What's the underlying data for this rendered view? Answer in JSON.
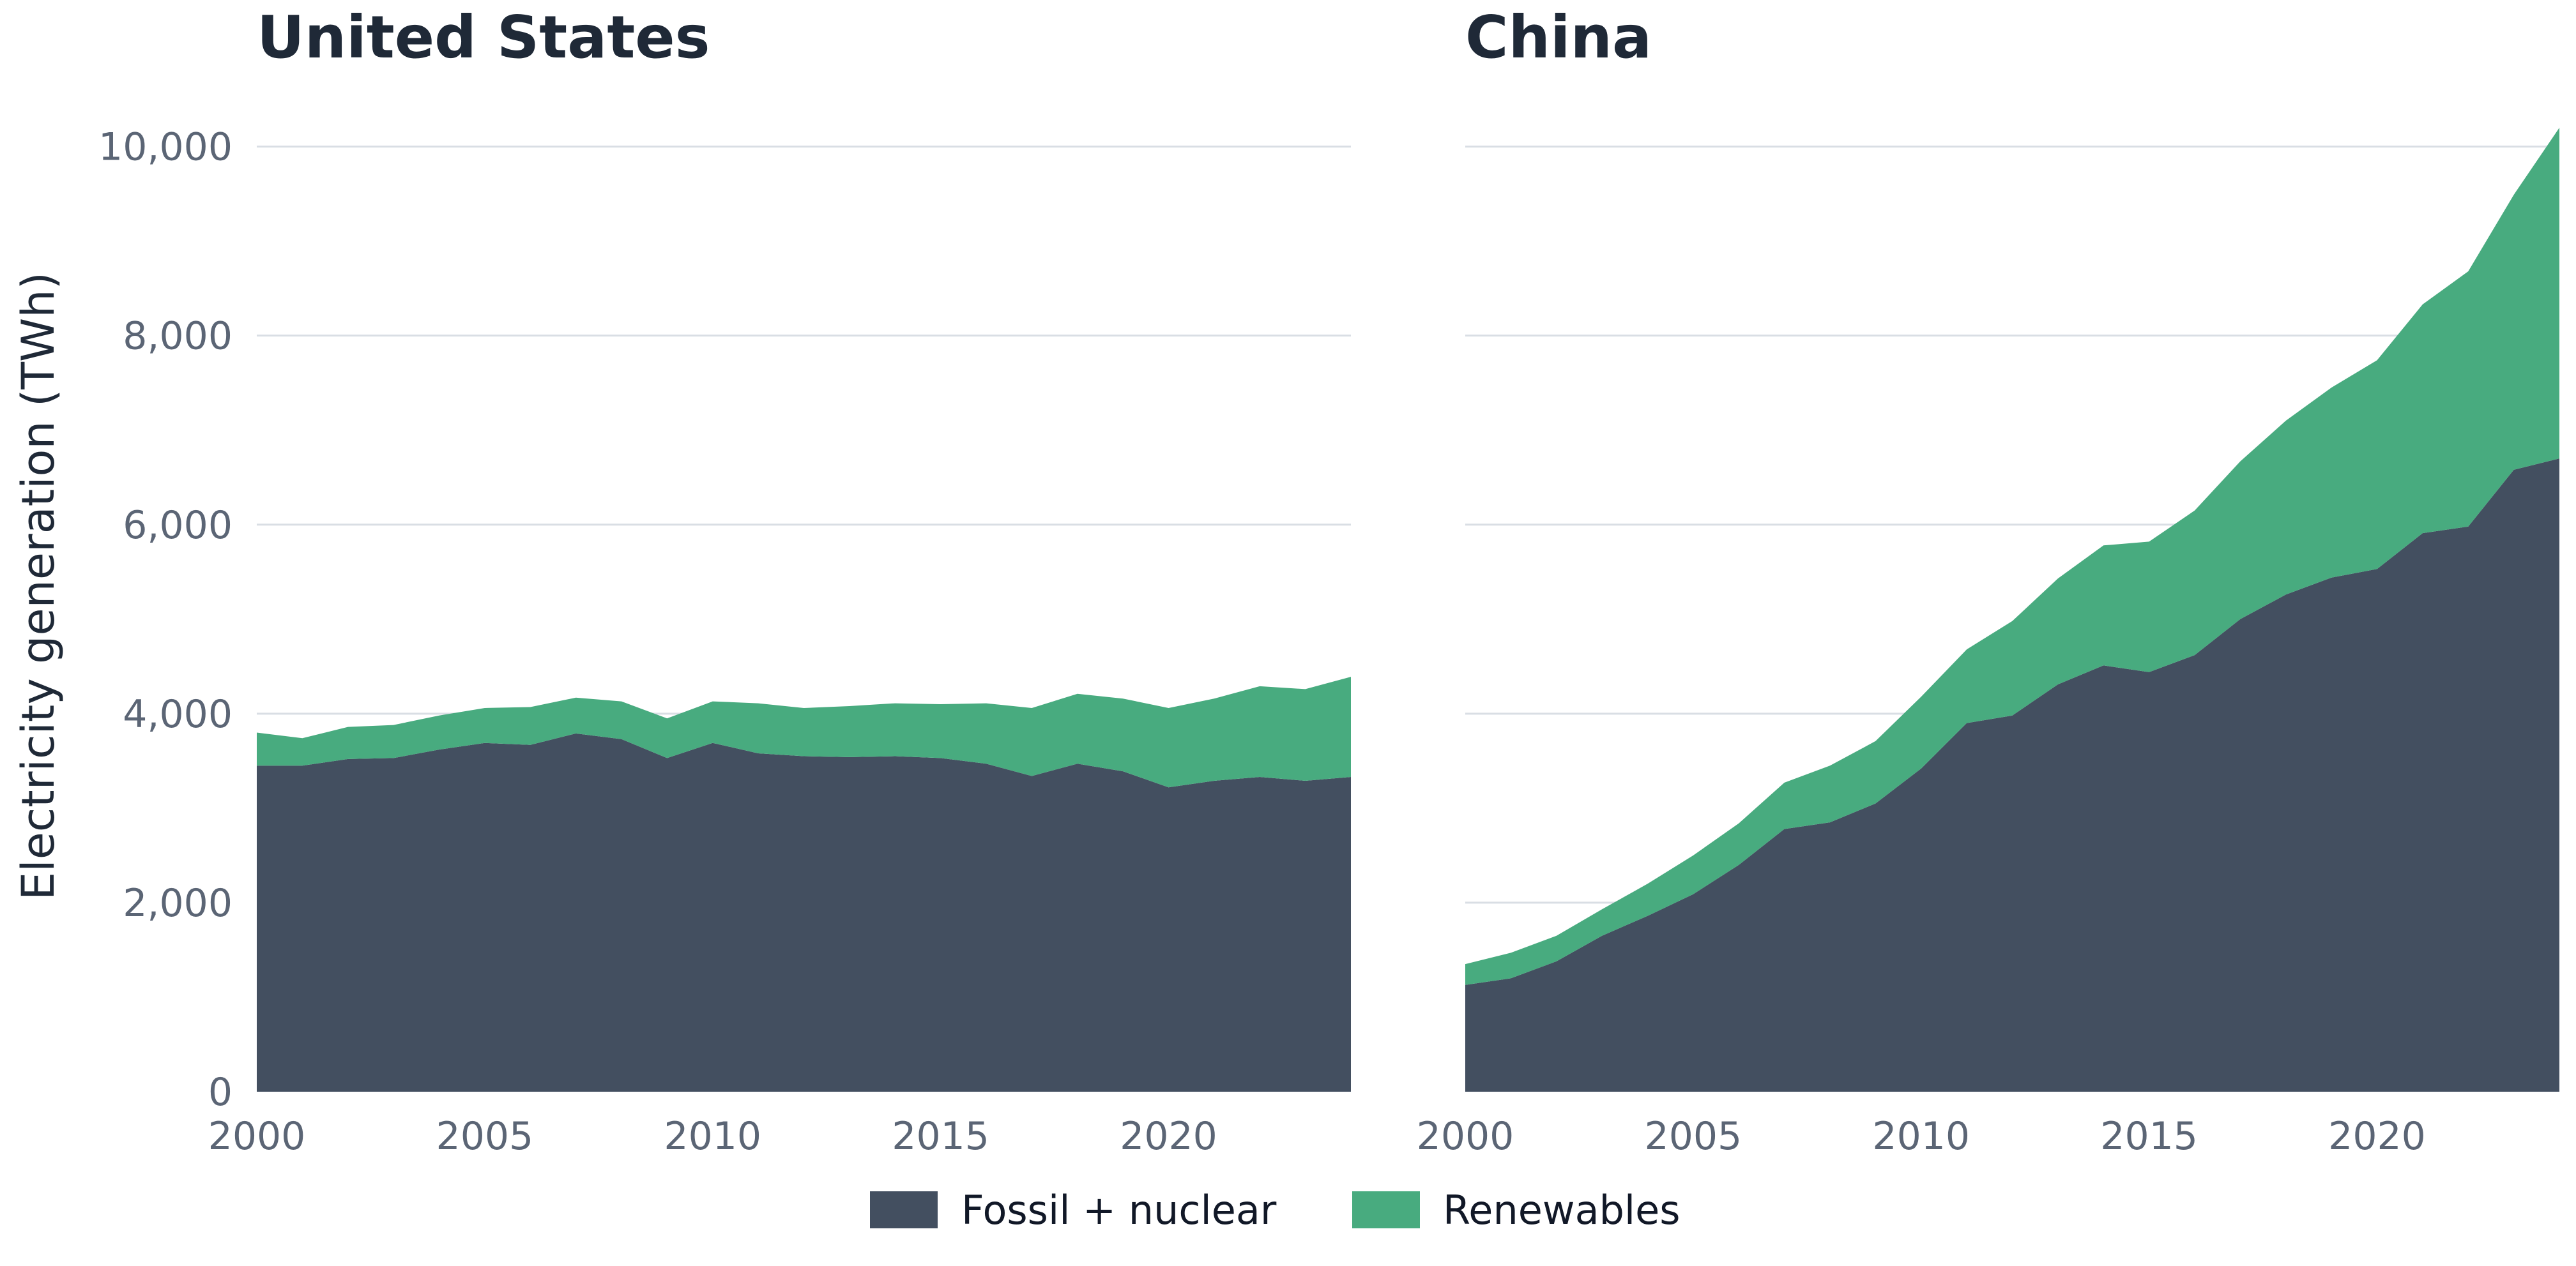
{
  "chart_data": {
    "type": "area",
    "stacked": true,
    "ylabel": "Electricity generation (TWh)",
    "ylim": [
      0,
      10200
    ],
    "yticks": [
      0,
      2000,
      4000,
      6000,
      8000,
      10000
    ],
    "ytick_labels": [
      "0",
      "2,000",
      "4,000",
      "6,000",
      "8,000",
      "10,000"
    ],
    "xlim": [
      2000,
      2024
    ],
    "xticks": [
      2000,
      2005,
      2010,
      2015,
      2020
    ],
    "xtick_labels": [
      "2000",
      "2005",
      "2010",
      "2015",
      "2020"
    ],
    "grid": "horizontal",
    "legend_position": "bottom-center",
    "legend": [
      {
        "label": "Fossil + nuclear",
        "color": "#434f60"
      },
      {
        "label": "Renewables",
        "color": "#48ab7f"
      }
    ],
    "panels": [
      {
        "title": "United States",
        "x": [
          2000,
          2001,
          2002,
          2003,
          2004,
          2005,
          2006,
          2007,
          2008,
          2009,
          2010,
          2011,
          2012,
          2013,
          2014,
          2015,
          2016,
          2017,
          2018,
          2019,
          2020,
          2021,
          2022,
          2023,
          2024
        ],
        "series": [
          {
            "name": "Fossil + nuclear",
            "values": [
              3450,
              3450,
              3520,
              3530,
              3620,
              3690,
              3670,
              3790,
              3730,
              3530,
              3690,
              3580,
              3550,
              3540,
              3550,
              3530,
              3470,
              3340,
              3470,
              3390,
              3220,
              3290,
              3330,
              3290,
              3330
            ]
          },
          {
            "name": "Renewables",
            "values": [
              350,
              290,
              340,
              350,
              360,
              370,
              400,
              380,
              400,
              420,
              440,
              530,
              510,
              540,
              560,
              570,
              640,
              720,
              740,
              770,
              840,
              870,
              960,
              970,
              1060
            ]
          }
        ]
      },
      {
        "title": "China",
        "x": [
          2000,
          2001,
          2002,
          2003,
          2004,
          2005,
          2006,
          2007,
          2008,
          2009,
          2010,
          2011,
          2012,
          2013,
          2014,
          2015,
          2016,
          2017,
          2018,
          2019,
          2020,
          2021,
          2022,
          2023,
          2024
        ],
        "series": [
          {
            "name": "Fossil + nuclear",
            "values": [
              1130,
              1200,
              1380,
              1650,
              1860,
              2090,
              2400,
              2780,
              2850,
              3050,
              3420,
              3900,
              3980,
              4310,
              4510,
              4440,
              4620,
              5000,
              5260,
              5440,
              5530,
              5910,
              5980,
              6580,
              6700
            ]
          },
          {
            "name": "Renewables",
            "values": [
              220,
              270,
              270,
              280,
              340,
              410,
              440,
              490,
              600,
              660,
              760,
              780,
              1000,
              1120,
              1270,
              1380,
              1530,
              1670,
              1840,
              2010,
              2210,
              2420,
              2700,
              2910,
              3500
            ]
          }
        ]
      }
    ]
  }
}
